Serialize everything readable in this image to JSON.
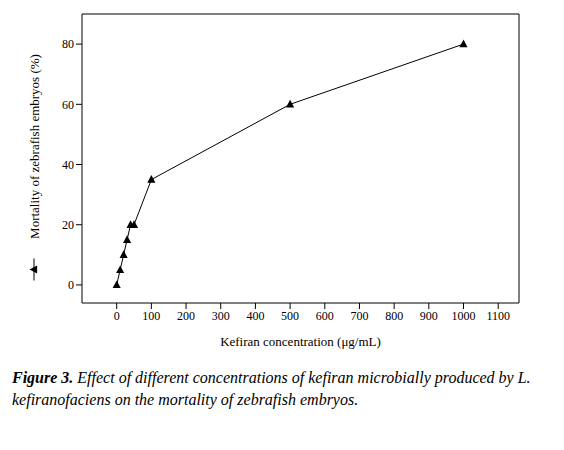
{
  "chart_data": {
    "type": "line",
    "title": "Figure 3. Effect of different concentrations of kefiran microbially produced by L. kefiranofaciens on the mortality of zebrafish embryos.",
    "x_label": "Kefiran concentration (μg/mL)",
    "y_label": "Mortality of zebrafish embryos (%)",
    "series": [
      {
        "name": "Mortality of zebrafish embryos (%)",
        "color": "#000000",
        "marker": "triangle",
        "line_style": "solid",
        "x": [
          0,
          10,
          20,
          30,
          40,
          50,
          100,
          500,
          1000
        ],
        "values": [
          0,
          5,
          10,
          15,
          20,
          20,
          35,
          60,
          80
        ]
      }
    ],
    "xlim": [
      -100,
      1160
    ],
    "xticks": [
      0,
      100,
      200,
      300,
      400,
      500,
      600,
      700,
      800,
      900,
      1000,
      1100
    ],
    "ylim": [
      -6,
      90
    ],
    "yticks": [
      0,
      20,
      40,
      60,
      80
    ],
    "grid": false
  }
}
